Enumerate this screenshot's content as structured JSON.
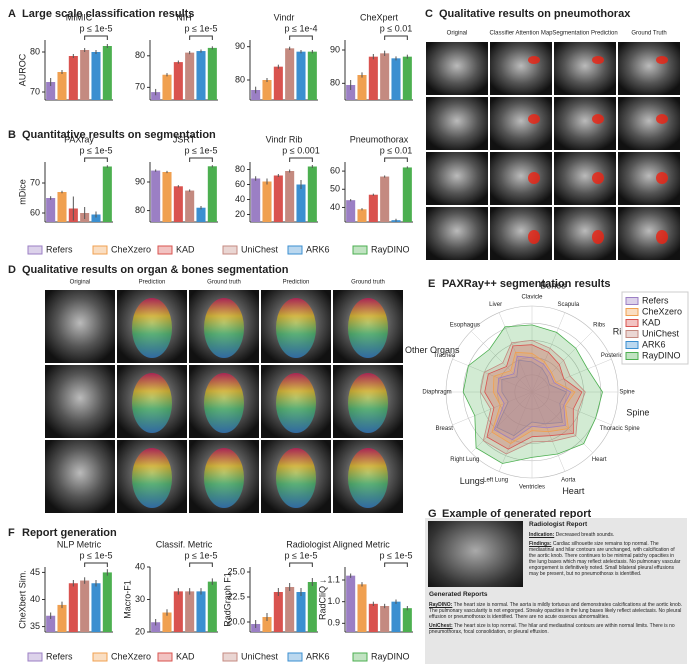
{
  "panels": [
    {
      "letter": "A",
      "title": "Large scale classification results"
    },
    {
      "letter": "B",
      "title": "Quantitative results on segmentation"
    },
    {
      "letter": "C",
      "title": "Qualitative results on pneumothorax"
    },
    {
      "letter": "D",
      "title": "Qualitative results on organ & bones segmentation"
    },
    {
      "letter": "E",
      "title": "PAXRay++ segmentation results"
    },
    {
      "letter": "F",
      "title": "Report generation"
    },
    {
      "letter": "G",
      "title": "Example of generated report"
    }
  ],
  "legend": [
    {
      "name": "Refers",
      "color": "#9b7fc4"
    },
    {
      "name": "CheXzero",
      "color": "#f0a050"
    },
    {
      "name": "KAD",
      "color": "#d9534f"
    },
    {
      "name": "UniChest",
      "color": "#c48a80"
    },
    {
      "name": "ARK6",
      "color": "#3b8fd0"
    },
    {
      "name": "RayDINO",
      "color": "#4caf50"
    }
  ],
  "subtitle_F": "Radiologist Aligned Metric",
  "headers_C": [
    "Original",
    "Classifier Attention Map",
    "Segmentation Prediction",
    "Ground Truth"
  ],
  "headers_D": [
    "Original",
    "Prediction",
    "Ground truth",
    "Prediction",
    "Ground truth"
  ],
  "report": {
    "heading": "Radiologist Report",
    "lines": [
      {
        "label": "Indication:",
        "text": "Decreased breath sounds."
      },
      {
        "label": "Findings:",
        "text": "Cardiac silhouette size remains top normal. The mediastinal and hilar contours are unchanged, with calcification of the aortic knob. There continues to be minimal patchy opacities in the lung bases which may reflect atelectasis. No pulmonary vascular engorgement is definitively noted. Small bilateral pleural effusions may be present, but no pneumothorax is identified."
      }
    ],
    "generated_heading": "Generated Reports",
    "generated": [
      {
        "label": "RayDINO:",
        "text": "The heart size is normal. The aorta is mildly tortuous and demonstrates calcifications at the aortic knob. The pulmonary vascularity is not engorged. Streaky opacities in the lung bases likely reflect atelectasis. No pleural effusion or pneumothorax is identified. There are no acute osseous abnormalities."
      },
      {
        "label": "UniChest:",
        "text": "The heart size is top normal. The hilar and mediastinal contours are within normal limits. There is no pneumothorax, focal consolidation, or pleural effusion."
      }
    ]
  },
  "chart_data": [
    {
      "type": "bar",
      "title": "MIMIC",
      "ylabel": "AUROC",
      "annotation": "p ≤ 1e-5",
      "values": [
        72.5,
        75,
        79,
        80.5,
        80,
        81.5
      ],
      "errors": [
        1,
        0.5,
        0.5,
        0.5,
        0.5,
        0.5
      ],
      "ylim": [
        68,
        83
      ],
      "yticks": [
        70,
        80
      ]
    },
    {
      "type": "bar",
      "title": "NIH",
      "annotation": "p ≤ 1e-5",
      "values": [
        68.5,
        74,
        78,
        81,
        81.5,
        82.5
      ],
      "errors": [
        1,
        0.5,
        0.5,
        0.5,
        0.5,
        0.5
      ],
      "ylim": [
        66,
        85
      ],
      "yticks": [
        70,
        80
      ]
    },
    {
      "type": "bar",
      "title": "Vindr",
      "annotation": "p ≤ 1e-4",
      "values": [
        77,
        80,
        84,
        89.5,
        88.5,
        88.5
      ],
      "errors": [
        1,
        0.6,
        0.6,
        0.5,
        0.5,
        0.5
      ],
      "ylim": [
        74,
        92
      ],
      "yticks": [
        80,
        90
      ]
    },
    {
      "type": "bar",
      "title": "CheXpert",
      "annotation": "p ≤ 0.01",
      "values": [
        79.5,
        82.5,
        88,
        89,
        87.5,
        88
      ],
      "errors": [
        1.5,
        0.8,
        0.8,
        0.8,
        0.6,
        0.6
      ],
      "ylim": [
        75,
        93
      ],
      "yticks": [
        80,
        90
      ]
    },
    {
      "type": "bar",
      "title": "PAXray",
      "ylabel": "mDice",
      "annotation": "p ≤ 1e-5",
      "values": [
        65,
        67,
        61.5,
        60,
        59.5,
        75.5
      ],
      "errors": [
        0.6,
        0.4,
        4,
        2,
        1,
        0.4
      ],
      "ylim": [
        57,
        77
      ],
      "yticks": [
        60,
        70
      ]
    },
    {
      "type": "bar",
      "title": "JSRT",
      "annotation": "p ≤ 1e-5",
      "values": [
        94,
        93.5,
        88.5,
        87,
        81,
        95.5
      ],
      "errors": [
        0.4,
        0.4,
        0.4,
        0.4,
        0.6,
        0.4
      ],
      "ylim": [
        76,
        97
      ],
      "yticks": [
        80,
        90
      ]
    },
    {
      "type": "bar",
      "title": "Vindr Rib",
      "annotation": "p ≤ 0.001",
      "values": [
        68,
        64,
        72,
        78,
        60,
        84
      ],
      "errors": [
        3,
        4,
        2,
        2,
        6,
        2
      ],
      "ylim": [
        10,
        90
      ],
      "yticks": [
        20,
        40,
        60,
        80
      ]
    },
    {
      "type": "bar",
      "title": "Pneumothorax",
      "annotation": "p ≤ 0.01",
      "values": [
        44,
        39,
        47,
        57,
        33,
        62
      ],
      "errors": [
        0.6,
        0.6,
        0.6,
        0.6,
        0.8,
        0.6
      ],
      "ylim": [
        32,
        65
      ],
      "yticks": [
        40,
        50,
        60
      ]
    },
    {
      "type": "bar",
      "title": "NLP Metric",
      "ylabel": "CheXbert Sim.",
      "annotation": "p ≤ 1e-5",
      "values": [
        37,
        39,
        43,
        43.5,
        43,
        45
      ],
      "errors": [
        0.6,
        0.6,
        0.6,
        0.6,
        0.6,
        0.6
      ],
      "ylim": [
        34,
        46
      ],
      "yticks": [
        35,
        40,
        45
      ]
    },
    {
      "type": "bar",
      "title": "Classif. Metric",
      "ylabel": "Macro-F1",
      "annotation": "p ≤ 1e-5",
      "values": [
        23,
        26,
        32.5,
        32.5,
        32.5,
        35.5
      ],
      "errors": [
        1,
        1,
        1,
        1,
        1,
        1
      ],
      "ylim": [
        20,
        40
      ],
      "yticks": [
        20,
        30,
        40
      ]
    },
    {
      "type": "bar",
      "ylabel": "RadGraph F1",
      "annotation": "p ≤ 1e-5",
      "values": [
        19.8,
        20.5,
        23,
        23.5,
        23,
        24
      ],
      "errors": [
        0.4,
        0.4,
        0.4,
        0.4,
        0.4,
        0.4
      ],
      "ylim": [
        19,
        25.5
      ],
      "yticks": [
        {
          "value": 20,
          "label": "20.0"
        },
        {
          "value": 22.5,
          "label": "22.5"
        },
        {
          "value": 25,
          "label": "25.0"
        }
      ]
    },
    {
      "type": "bar",
      "ylabel": "RadCliQ ↓",
      "annotation": "p ≤ 1e-5",
      "values": [
        1.12,
        1.08,
        0.99,
        0.98,
        1.0,
        0.97
      ],
      "errors": [
        0.01,
        0.01,
        0.01,
        0.01,
        0.01,
        0.01
      ],
      "ylim": [
        0.86,
        1.16
      ],
      "yticks": [
        0.9,
        {
          "value": 1.0,
          "label": "1.0"
        },
        1.1
      ]
    },
    {
      "type": "radar",
      "categories": [
        "Clavicle",
        "Scapula",
        "Ribs",
        "Posterior Ribs",
        "Spine",
        "Thoracic Spine",
        "Heart",
        "Aorta",
        "Ventricles",
        "Left Lung",
        "Right Lung",
        "Breast",
        "Diaphragm",
        "Trachea",
        "Esophagus",
        "Liver"
      ],
      "groups": [
        "Bones",
        "Ribs",
        "Spine",
        "Heart",
        "Lungs",
        "Other Organs"
      ],
      "rlim": [
        0,
        100
      ],
      "rticks": [
        20,
        40,
        60,
        80,
        100
      ],
      "series": [
        {
          "name": "Refers",
          "color": "#9b7fc4",
          "values": [
            40,
            35,
            30,
            28,
            45,
            40,
            55,
            45,
            40,
            60,
            62,
            35,
            40,
            42,
            30,
            45
          ]
        },
        {
          "name": "CheXzero",
          "color": "#f0a050",
          "values": [
            45,
            38,
            32,
            30,
            50,
            42,
            60,
            50,
            45,
            65,
            66,
            40,
            45,
            48,
            35,
            50
          ]
        },
        {
          "name": "KAD",
          "color": "#d9534f",
          "values": [
            55,
            50,
            45,
            40,
            58,
            52,
            68,
            55,
            52,
            72,
            74,
            48,
            55,
            55,
            42,
            58
          ]
        },
        {
          "name": "UniChest",
          "color": "#c48a80",
          "values": [
            60,
            55,
            52,
            48,
            62,
            58,
            72,
            62,
            58,
            78,
            80,
            52,
            60,
            60,
            48,
            62
          ]
        },
        {
          "name": "ARK6",
          "color": "#3b8fd0",
          "values": [
            35,
            30,
            25,
            22,
            40,
            35,
            50,
            40,
            35,
            55,
            58,
            30,
            35,
            38,
            25,
            40
          ]
        },
        {
          "name": "RayDINO",
          "color": "#4caf50",
          "values": [
            78,
            75,
            72,
            70,
            82,
            80,
            85,
            78,
            76,
            90,
            92,
            72,
            80,
            80,
            70,
            82
          ]
        }
      ]
    }
  ]
}
